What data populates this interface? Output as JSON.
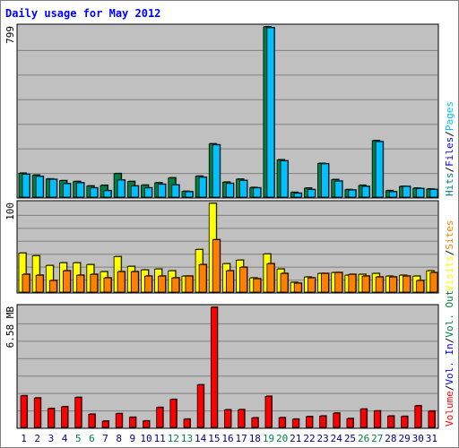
{
  "chart_data": {
    "type": "bar",
    "title": "Daily usage for May 2012",
    "days": [
      "1",
      "2",
      "3",
      "4",
      "5",
      "6",
      "7",
      "8",
      "9",
      "10",
      "11",
      "12",
      "13",
      "14",
      "15",
      "16",
      "17",
      "18",
      "19",
      "20",
      "21",
      "22",
      "23",
      "24",
      "25",
      "26",
      "27",
      "28",
      "29",
      "30",
      "31"
    ],
    "weekend_days": [
      "5",
      "6",
      "12",
      "13",
      "19",
      "20",
      "26",
      "27"
    ],
    "panels": [
      {
        "id": "top",
        "max_label": "799",
        "ymax": 799,
        "side_label": [
          "Hits",
          "/",
          "Files",
          "/",
          "Pages"
        ],
        "series": [
          {
            "name": "Hits",
            "color": "#008040",
            "values": [
              112,
              103,
              85,
              77,
              73,
              52,
              55,
              110,
              73,
              56,
              67,
              90,
              27,
              98,
              250,
              70,
              84,
              45,
              799,
              175,
              22,
              42,
              158,
              82,
              35,
              55,
              265,
              30,
              50,
              42,
              38
            ]
          },
          {
            "name": "Files",
            "color": "#00c0ff",
            "values": [
              107,
              97,
              83,
              63,
              67,
              43,
              30,
              80,
              52,
              43,
              60,
              57,
              25,
              93,
              245,
              64,
              78,
              43,
              795,
              170,
              18,
              35,
              156,
              75,
              33,
              50,
              260,
              25,
              50,
              40,
              36
            ]
          }
        ]
      },
      {
        "id": "middle",
        "max_label": "100",
        "ymax": 100,
        "side_label": [
          "Visits",
          "/",
          "Sites"
        ],
        "series": [
          {
            "name": "Visits",
            "color": "#ffff00",
            "values": [
              44,
              41,
              30,
              33,
              33,
              31,
              23,
              40,
              29,
              25,
              26,
              24,
              18,
              48,
              100,
              32,
              36,
              16,
              43,
              26,
              11,
              17,
              21,
              22,
              19,
              20,
              21,
              18,
              19,
              18,
              24
            ]
          },
          {
            "name": "Sites",
            "color": "#ff8000",
            "values": [
              20,
              19,
              13,
              24,
              19,
              20,
              16,
              23,
              23,
              18,
              18,
              16,
              18,
              31,
              59,
              24,
              28,
              15,
              32,
              21,
              10,
              16,
              21,
              22,
              20,
              18,
              17,
              17,
              18,
              13,
              22
            ]
          }
        ]
      },
      {
        "id": "bottom",
        "max_label": "6.58 MB",
        "ymax": 6.58,
        "side_label": [
          "Volume",
          "/",
          "Vol. In",
          "/",
          "Vol. Out"
        ],
        "series": [
          {
            "name": "Volume",
            "color": "#ff0000",
            "values": [
              1.73,
              1.61,
              1.03,
              1.13,
              1.64,
              0.72,
              0.34,
              0.75,
              0.55,
              0.35,
              1.09,
              1.53,
              0.45,
              2.33,
              6.58,
              0.96,
              0.97,
              0.52,
              1.7,
              0.53,
              0.45,
              0.59,
              0.62,
              0.78,
              0.48,
              1.0,
              0.9,
              0.62,
              0.6,
              1.18,
              0.89
            ]
          }
        ]
      }
    ],
    "side_label_colors": {
      "Hits": "#008080",
      "Files": "#0000ff",
      "Pages": "#00c0ff",
      "Visits": "#ffff00",
      "Sites": "#ff8000",
      "Volume": "#ff0000",
      "Vol. In": "#0000ff",
      "Vol. Out": "#008040",
      "/": "#000000"
    },
    "colors": {
      "title": "#0000ff",
      "panel_bg": "#c0c0c0",
      "outer_bg": "#ffffff",
      "grid": "#808080",
      "weekday_label": "#000080",
      "weekend_label": "#00804a"
    }
  }
}
